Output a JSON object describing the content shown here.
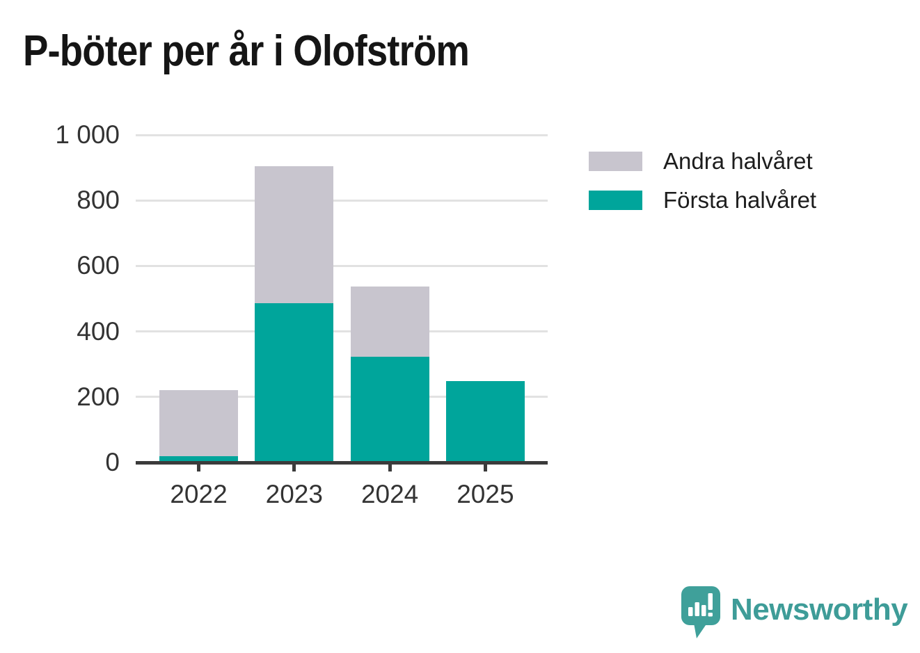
{
  "title": "P-böter per år i Olofström",
  "chart_data": {
    "type": "bar",
    "stacked": true,
    "title": "P-böter per år i Olofström",
    "categories": [
      "2022",
      "2023",
      "2024",
      "2025"
    ],
    "series": [
      {
        "name": "Första halvåret",
        "color": "#00A59B",
        "values": [
          20,
          486,
          323,
          249
        ]
      },
      {
        "name": "Andra halvåret",
        "color": "#C8C5CE",
        "values": [
          201,
          418,
          214,
          0
        ]
      }
    ],
    "totals": [
      221,
      904,
      537,
      249
    ],
    "xlabel": "",
    "ylabel": "",
    "ylim": [
      0,
      1000
    ],
    "yticks": [
      0,
      200,
      400,
      600,
      800,
      1000
    ],
    "ytick_labels": [
      "0",
      "200",
      "400",
      "600",
      "800",
      "1 000"
    ],
    "grid": true,
    "legend_position": "top-right",
    "colors": {
      "grid": "#E2E2E2",
      "axis": "#3B3B3B",
      "tick_text": "#333333",
      "title_text": "#151515"
    }
  },
  "legend": {
    "items": [
      {
        "label": "Andra halvåret",
        "color": "#C8C5CE"
      },
      {
        "label": "Första halvåret",
        "color": "#00A59B"
      }
    ]
  },
  "branding": {
    "logo_text": "Newsworthy",
    "logo_color": "#3E9C98",
    "logo_icon": "speech-bubble-bar-chart-exclamation"
  }
}
